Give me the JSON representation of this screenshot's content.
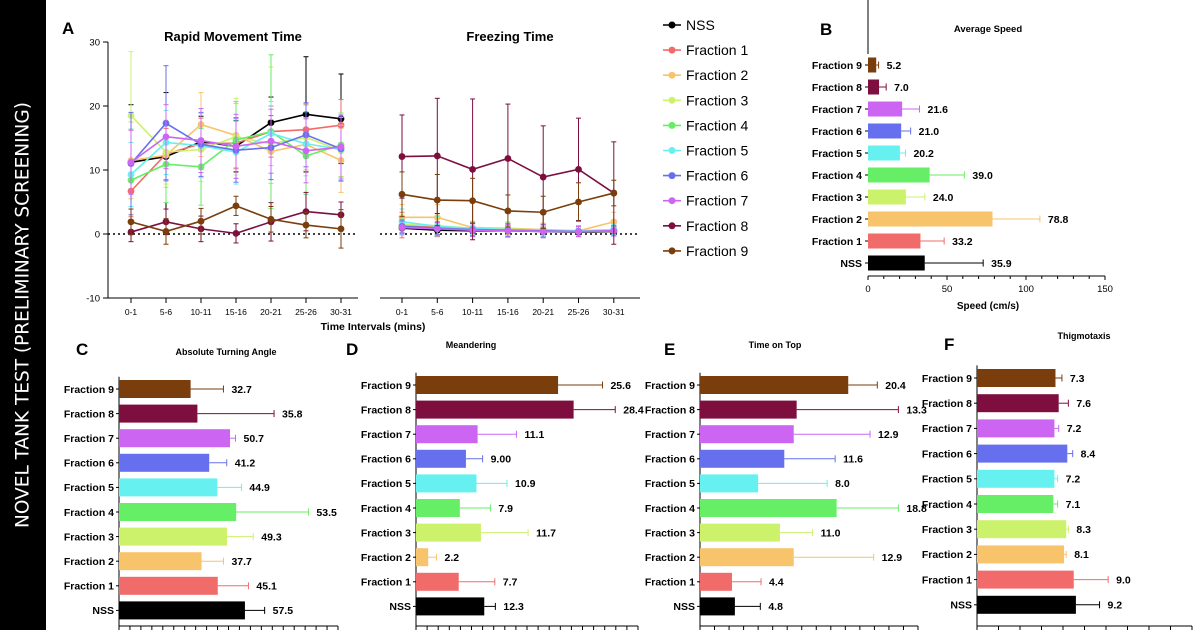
{
  "sidebar_title": "NOVEL TANK TEST (PRELIMINARY SCREENING)",
  "colors": {
    "NSS": "#000000",
    "Fraction 1": "#f26b6b",
    "Fraction 2": "#f7c46c",
    "Fraction 3": "#ccf26b",
    "Fraction 4": "#66ee66",
    "Fraction 5": "#66f0f0",
    "Fraction 6": "#6670ee",
    "Fraction 7": "#cc66f2",
    "Fraction 8": "#7d0e3e",
    "Fraction 9": "#7a3d0c"
  },
  "chart_data": [
    {
      "panel": "A",
      "type": "line",
      "title": "Rapid Movement Time",
      "xlabel": "Time Intervals (mins)",
      "categories": [
        "0-1",
        "5-6",
        "10-11",
        "15-16",
        "20-21",
        "25-26",
        "30-31"
      ],
      "ylim": [
        -10,
        30
      ],
      "yticks": [
        -10,
        0,
        10,
        20,
        30
      ],
      "reference_line": 0,
      "series": [
        {
          "name": "NSS",
          "values": [
            11.2,
            12.1,
            14.4,
            13.7,
            17.4,
            18.7,
            18.0
          ]
        },
        {
          "name": "Fraction 1",
          "values": [
            6.7,
            12.5,
            14.1,
            14.2,
            16.0,
            16.3,
            17.0
          ]
        },
        {
          "name": "Fraction 2",
          "values": [
            11.5,
            12.3,
            17.1,
            15.4,
            12.9,
            14.0,
            11.5
          ]
        },
        {
          "name": "Fraction 3",
          "values": [
            18.5,
            12.8,
            13.2,
            15.2,
            14.1,
            15.1,
            13.0
          ]
        },
        {
          "name": "Fraction 4",
          "values": [
            8.4,
            10.9,
            10.5,
            14.7,
            16.0,
            12.2,
            13.9
          ]
        },
        {
          "name": "Fraction 5",
          "values": [
            9.3,
            14.3,
            13.8,
            12.8,
            15.7,
            14.1,
            13.2
          ]
        },
        {
          "name": "Fraction 6",
          "values": [
            11.0,
            17.3,
            14.0,
            13.1,
            13.5,
            15.5,
            13.3
          ]
        },
        {
          "name": "Fraction 7",
          "values": [
            11.2,
            15.2,
            14.6,
            13.7,
            14.5,
            13.0,
            13.6
          ]
        },
        {
          "name": "Fraction 8",
          "values": [
            0.3,
            1.9,
            0.8,
            0.1,
            1.9,
            3.5,
            3.0
          ]
        },
        {
          "name": "Fraction 9",
          "values": [
            1.9,
            0.4,
            2.0,
            4.4,
            2.3,
            1.4,
            0.8
          ]
        }
      ]
    },
    {
      "panel": "A",
      "type": "line",
      "title": "Freezing Time",
      "categories": [
        "0-1",
        "5-6",
        "10-11",
        "15-16",
        "20-21",
        "25-26",
        "30-31"
      ],
      "ylim": [
        -10,
        30
      ],
      "reference_line": 0,
      "series": [
        {
          "name": "NSS",
          "values": [
            0.9,
            0.6,
            0.5,
            0.5,
            0.4,
            0.3,
            0.4
          ]
        },
        {
          "name": "Fraction 1",
          "values": [
            1.4,
            1.1,
            0.8,
            0.7,
            0.5,
            0.4,
            0.5
          ]
        },
        {
          "name": "Fraction 2",
          "values": [
            2.6,
            2.6,
            1.0,
            0.9,
            0.7,
            0.5,
            1.9
          ]
        },
        {
          "name": "Fraction 3",
          "values": [
            1.5,
            1.3,
            0.9,
            0.8,
            0.6,
            0.5,
            0.6
          ]
        },
        {
          "name": "Fraction 4",
          "values": [
            1.1,
            0.9,
            0.7,
            0.6,
            0.5,
            0.4,
            0.5
          ]
        },
        {
          "name": "Fraction 5",
          "values": [
            1.9,
            1.2,
            0.9,
            0.7,
            0.6,
            0.5,
            0.7
          ]
        },
        {
          "name": "Fraction 6",
          "values": [
            1.2,
            0.9,
            0.7,
            0.6,
            0.5,
            0.4,
            0.5
          ]
        },
        {
          "name": "Fraction 7",
          "values": [
            1.0,
            0.8,
            0.6,
            0.5,
            0.4,
            0.4,
            0.5
          ]
        },
        {
          "name": "Fraction 8",
          "values": [
            12.1,
            12.2,
            10.1,
            11.8,
            8.9,
            10.1,
            6.4
          ]
        },
        {
          "name": "Fraction 9",
          "values": [
            6.2,
            5.3,
            5.2,
            3.6,
            3.4,
            5.0,
            6.4
          ]
        }
      ]
    },
    {
      "panel": "B",
      "type": "bar",
      "orientation": "horizontal",
      "title": "Average Speed",
      "xlabel": "Speed (cm/s)",
      "xlim": [
        0,
        150
      ],
      "xticks": [
        0,
        50,
        100,
        150
      ],
      "categories": [
        "Fraction 9",
        "Fraction 8",
        "Fraction 7",
        "Fraction 6",
        "Fraction 5",
        "Fraction 4",
        "Fraction 3",
        "Fraction 2",
        "Fraction 1",
        "NSS"
      ],
      "values": [
        5.2,
        7.0,
        21.6,
        21.0,
        20.2,
        39.0,
        24.0,
        78.8,
        33.2,
        35.9
      ],
      "labels": [
        "5.2",
        "7.0",
        "21.6",
        "21.0",
        "20.2",
        "39.0",
        "24.0",
        "78.8",
        "33.2",
        "35.9"
      ],
      "errors": [
        1.5,
        4.5,
        11.0,
        6.0,
        3.5,
        22.0,
        12.0,
        30.0,
        15.0,
        37.0
      ]
    },
    {
      "panel": "C",
      "type": "bar",
      "orientation": "horizontal",
      "title": "Absolute Turning Angle",
      "xmax": 100,
      "categories": [
        "Fraction 9",
        "Fraction 8",
        "Fraction 7",
        "Fraction 6",
        "Fraction 5",
        "Fraction 4",
        "Fraction 3",
        "Fraction 2",
        "Fraction 1",
        "NSS"
      ],
      "values": [
        32.7,
        35.8,
        50.7,
        41.2,
        44.9,
        53.5,
        49.3,
        37.7,
        45.1,
        57.5
      ],
      "labels": [
        "32.7",
        "35.8",
        "50.7",
        "41.2",
        "44.9",
        "53.5",
        "49.3",
        "37.7",
        "45.1",
        "57.5"
      ],
      "errors": [
        15.0,
        35.0,
        2.5,
        8.0,
        11.0,
        33.0,
        12.0,
        10.0,
        14.0,
        9.0
      ]
    },
    {
      "panel": "D",
      "type": "bar",
      "orientation": "horizontal",
      "title": "Meandering",
      "xmax": 40,
      "categories": [
        "Fraction 9",
        "Fraction 8",
        "Fraction 7",
        "Fraction 6",
        "Fraction 5",
        "Fraction 4",
        "Fraction 3",
        "Fraction 2",
        "Fraction 1",
        "NSS"
      ],
      "values": [
        25.6,
        28.4,
        11.1,
        9.0,
        10.9,
        7.9,
        11.7,
        2.2,
        7.7,
        12.3
      ],
      "labels": [
        "25.6",
        "28.4",
        "11.1",
        "9.00",
        "10.9",
        "7.9",
        "11.7",
        "2.2",
        "7.7",
        "12.3"
      ],
      "errors": [
        8.0,
        7.5,
        7.0,
        3.0,
        5.5,
        5.5,
        8.5,
        1.5,
        6.5,
        2.0
      ]
    },
    {
      "panel": "E",
      "type": "bar",
      "orientation": "horizontal",
      "title": "Time on Top",
      "xmax": 30,
      "categories": [
        "Fraction 9",
        "Fraction 8",
        "Fraction 7",
        "Fraction 6",
        "Fraction 5",
        "Fraction 4",
        "Fraction 3",
        "Fraction 2",
        "Fraction 1",
        "NSS"
      ],
      "values": [
        20.4,
        13.3,
        12.9,
        11.6,
        8.0,
        18.8,
        11.0,
        12.9,
        4.4,
        4.8
      ],
      "labels": [
        "20.4",
        "13.3",
        "12.9",
        "11.6",
        "8.0",
        "18.8",
        "11.0",
        "12.9",
        "4.4",
        "4.8"
      ],
      "errors": [
        4.0,
        14.0,
        10.5,
        7.0,
        9.5,
        8.5,
        4.5,
        11.0,
        4.0,
        3.5
      ]
    },
    {
      "panel": "F",
      "type": "bar",
      "orientation": "horizontal",
      "title": "Thigmotaxis",
      "xmax": 20,
      "categories": [
        "Fraction 9",
        "Fraction 8",
        "Fraction 7",
        "Fraction 6",
        "Fraction 5",
        "Fraction 4",
        "Fraction 3",
        "Fraction 2",
        "Fraction 1",
        "NSS"
      ],
      "values": [
        7.3,
        7.6,
        7.2,
        8.4,
        7.2,
        7.1,
        8.3,
        8.1,
        9.0,
        9.2
      ],
      "labels": [
        "7.3",
        "7.6",
        "7.2",
        "8.4",
        "7.2",
        "7.1",
        "8.3",
        "8.1",
        "9.0",
        "9.2"
      ],
      "errors": [
        0.6,
        0.9,
        0.4,
        0.5,
        0.3,
        0.4,
        0.2,
        0.2,
        3.2,
        2.2
      ]
    }
  ],
  "legend": [
    "NSS",
    "Fraction 1",
    "Fraction 2",
    "Fraction 3",
    "Fraction 4",
    "Fraction 5",
    "Fraction 6",
    "Fraction 7",
    "Fraction 8",
    "Fraction 9"
  ]
}
